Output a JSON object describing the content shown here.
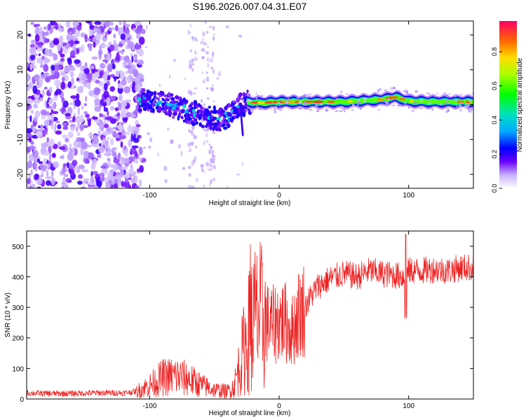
{
  "title": "S196.2026.007.04.31.E07",
  "chart_data": [
    {
      "type": "heatmap",
      "name": "spectrogram",
      "xlabel": "Height of straight line (km)",
      "ylabel": "Frequency (Hz)",
      "xlim": [
        -195,
        150
      ],
      "ylim": [
        -24,
        24
      ],
      "xticks": [
        -100,
        0,
        100
      ],
      "yticks": [
        -20,
        -10,
        0,
        10,
        20
      ],
      "colorbar": {
        "label": "Normalized spectral amplitude",
        "ticks": [
          0.0,
          0.2,
          0.4,
          0.6,
          0.8
        ],
        "range": [
          0,
          0.98
        ]
      },
      "ridge": {
        "description_points_x": [
          -105,
          -95,
          -85,
          -75,
          -65,
          -55,
          -45,
          -38,
          -32,
          -25,
          -15,
          0,
          20,
          50,
          80,
          90,
          100,
          120,
          150
        ],
        "description_points_y": [
          1.5,
          1.0,
          0.0,
          -1.5,
          -2.5,
          -3.5,
          -4.5,
          -3.0,
          -0.5,
          0.8,
          0.5,
          0.8,
          0.8,
          0.8,
          1.5,
          2.2,
          1.0,
          0.8,
          0.8
        ]
      }
    },
    {
      "type": "line",
      "name": "snr",
      "xlabel": "Height of straight line (km)",
      "ylabel": "SNR (10 * v/v)",
      "xlim": [
        -195,
        150
      ],
      "ylim": [
        0,
        550
      ],
      "xticks": [
        -100,
        0,
        100
      ],
      "yticks": [
        0,
        100,
        200,
        300,
        400,
        500
      ],
      "series": [
        {
          "name": "SNR",
          "color": "#ee2222",
          "x": [
            -195,
            -180,
            -160,
            -140,
            -120,
            -110,
            -100,
            -90,
            -80,
            -70,
            -60,
            -50,
            -40,
            -35,
            -30,
            -25,
            -20,
            -15,
            -10,
            -5,
            0,
            5,
            10,
            15,
            20,
            25,
            30,
            40,
            50,
            60,
            70,
            80,
            90,
            97,
            100,
            110,
            120,
            130,
            140,
            150
          ],
          "y": [
            20,
            18,
            18,
            20,
            20,
            25,
            45,
            70,
            75,
            65,
            45,
            30,
            25,
            40,
            120,
            200,
            260,
            270,
            250,
            240,
            260,
            250,
            220,
            280,
            300,
            340,
            370,
            395,
            410,
            400,
            420,
            410,
            405,
            400,
            420,
            420,
            425,
            420,
            430,
            430
          ]
        }
      ]
    }
  ]
}
